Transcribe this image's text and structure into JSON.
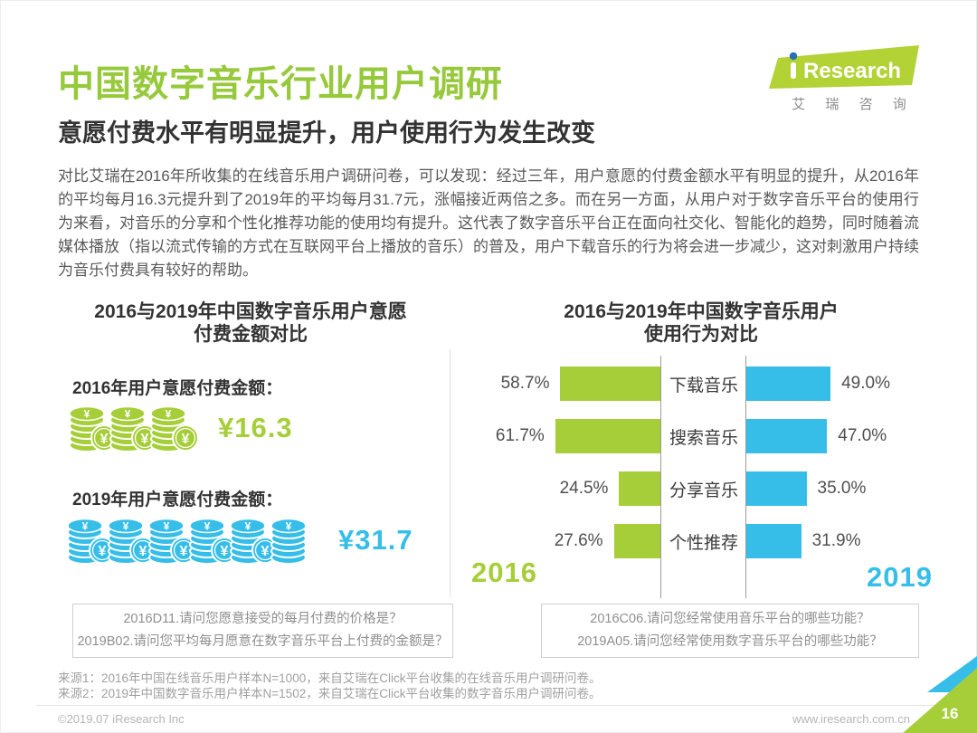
{
  "colors": {
    "green": "#a6ce39",
    "blue": "#36bee8",
    "logo_green": "#b2d235",
    "logo_dot_blue": "#2a6fb5",
    "title_green": "#97c93c"
  },
  "header": {
    "title": "中国数字音乐行业用户调研",
    "subtitle": "意愿付费水平有明显提升，用户使用行为发生改变",
    "body": "对比艾瑞在2016年所收集的在线音乐用户调研问卷，可以发现：经过三年，用户意愿的付费金额水平有明显的提升，从2016年的平均每月16.3元提升到了2019年的平均每月31.7元，涨幅接近两倍之多。而在另一方面，从用户对于数字音乐平台的使用行为来看，对音乐的分享和个性化推荐功能的使用均有提升。这代表了数字音乐平台正在面向社交化、智能化的趋势，同时随着流媒体播放（指以流式传输的方式在互联网平台上播放的音乐）的普及，用户下载音乐的行为将会进一步减少，这对刺激用户持续为音乐付费具有较好的帮助。"
  },
  "logo": {
    "brand": "Research",
    "subtext": "艾 瑞 咨 询"
  },
  "left_chart": {
    "title_line1": "2016与2019年中国数字音乐用户意愿",
    "title_line2": "付费金额对比",
    "items": [
      {
        "label": "2016年用户意愿付费金额：",
        "amount": "¥16.3",
        "full_coins": 3,
        "plain_coins": 0,
        "color": "#a6ce39"
      },
      {
        "label": "2019年用户意愿付费金额：",
        "amount": "¥31.7",
        "full_coins": 5,
        "plain_coins": 1,
        "color": "#36bee8"
      }
    ],
    "note_line1": "2016D11.请问您愿意接受的每月付费的价格是？",
    "note_line2": "2019B02.请问您平均每月愿意在数字音乐平台上付费的金额是？"
  },
  "right_chart": {
    "title_line1": "2016与2019年中国数字音乐用户",
    "title_line2": "使用行为对比",
    "note_line1": "2016C06.请问您经常使用音乐平台的哪些功能？",
    "note_line2": "2019A05.请问您经常使用数字音乐平台的哪些功能？"
  },
  "chart_data": {
    "type": "bar",
    "orientation": "horizontal-tornado",
    "title": "2016与2019年中国数字音乐用户使用行为对比",
    "categories": [
      "下载音乐",
      "搜索音乐",
      "分享音乐",
      "个性推荐"
    ],
    "series": [
      {
        "name": "2016",
        "color": "#a6ce39",
        "side": "left",
        "values": [
          58.7,
          61.7,
          24.5,
          27.6
        ]
      },
      {
        "name": "2019",
        "color": "#36bee8",
        "side": "right",
        "values": [
          49.0,
          47.0,
          35.0,
          31.9
        ]
      }
    ],
    "value_suffix": "%",
    "value_decimals": 1,
    "xlim": [
      0,
      65
    ],
    "grid": false,
    "legend_position": "bottom-corners"
  },
  "sources": {
    "line1": "来源1：2016年中国在线音乐用户样本N=1000，来自艾瑞在Click平台收集的在线音乐用户调研问卷。",
    "line2": "来源2：2019年中国数字音乐用户样本N=1502，来自艾瑞在Click平台收集的数字音乐用户调研问卷。"
  },
  "footer": {
    "copyright": "©2019.07 iResearch Inc",
    "website": "www.iresearch.com.cn",
    "page_number": "16"
  }
}
